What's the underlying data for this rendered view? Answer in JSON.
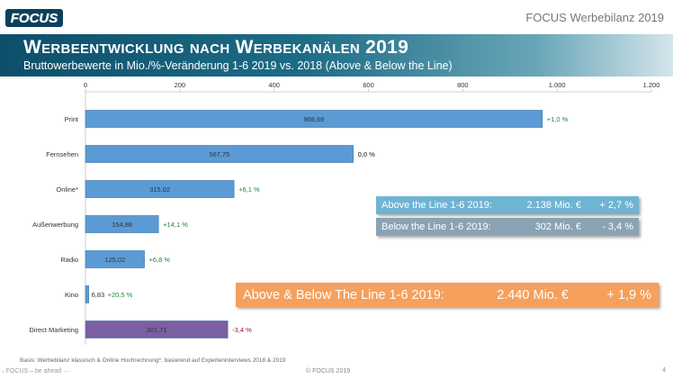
{
  "header": {
    "logo_text": "FOCUS",
    "title": "FOCUS Werbebilanz 2019"
  },
  "banner": {
    "title": "Werbeentwicklung nach Werbekanälen 2019",
    "subtitle": "Bruttowerbewerte in Mio./%-Veränderung 1-6 2019 vs. 2018 (Above & Below the Line)"
  },
  "chart_data": {
    "type": "bar",
    "orientation": "horizontal",
    "categories": [
      "Print",
      "Fernsehen",
      "Online*",
      "Außenwerbung",
      "Radio",
      "Kino",
      "Direct Marketing"
    ],
    "values": [
      968.69,
      567.75,
      315.02,
      154.88,
      125.02,
      6.83,
      301.71
    ],
    "value_labels": [
      "968,69",
      "567,75",
      "315,02",
      "154,88",
      "125,02",
      "6,83",
      "301,71"
    ],
    "changes": [
      "+1,0 %",
      "0,0 %",
      "+6,1 %",
      "+14,1 %",
      "+6,8 %",
      "+20,5 %",
      "-3,4 %"
    ],
    "change_colors": [
      "#1a8a3a",
      "#111111",
      "#1a8a3a",
      "#1a8a3a",
      "#1a8a3a",
      "#1a8a3a",
      "#a01030"
    ],
    "bar_colors": [
      "#5b9bd5",
      "#5b9bd5",
      "#5b9bd5",
      "#5b9bd5",
      "#5b9bd5",
      "#5b9bd5",
      "#7b5fa2"
    ],
    "xlim": [
      0,
      1200
    ],
    "ticks": [
      0,
      200,
      400,
      600,
      800,
      1000,
      1200
    ],
    "tick_labels": [
      "0",
      "200",
      "400",
      "600",
      "800",
      "1.000",
      "1.200"
    ],
    "axis_position": "top",
    "grid": false
  },
  "summary": {
    "above": {
      "label": "Above the Line 1-6 2019:",
      "value": "2.138 Mio. €",
      "change": "+ 2,7 %"
    },
    "below": {
      "label": "Below the Line 1-6 2019:",
      "value": "302 Mio. €",
      "change": "- 3,4 %"
    },
    "total": {
      "label": "Above & Below The Line 1-6 2019:",
      "value": "2.440 Mio. €",
      "change": "+ 1,9 %"
    }
  },
  "footer": {
    "note": "Basis: Werbebilanz klassisch & Online Hochrechnung*, basierend auf Experteninterviews 2018 & 2019",
    "nav_text": "FOCUS – be ahead",
    "copyright": "© FOCUS 2019",
    "page": "4"
  }
}
